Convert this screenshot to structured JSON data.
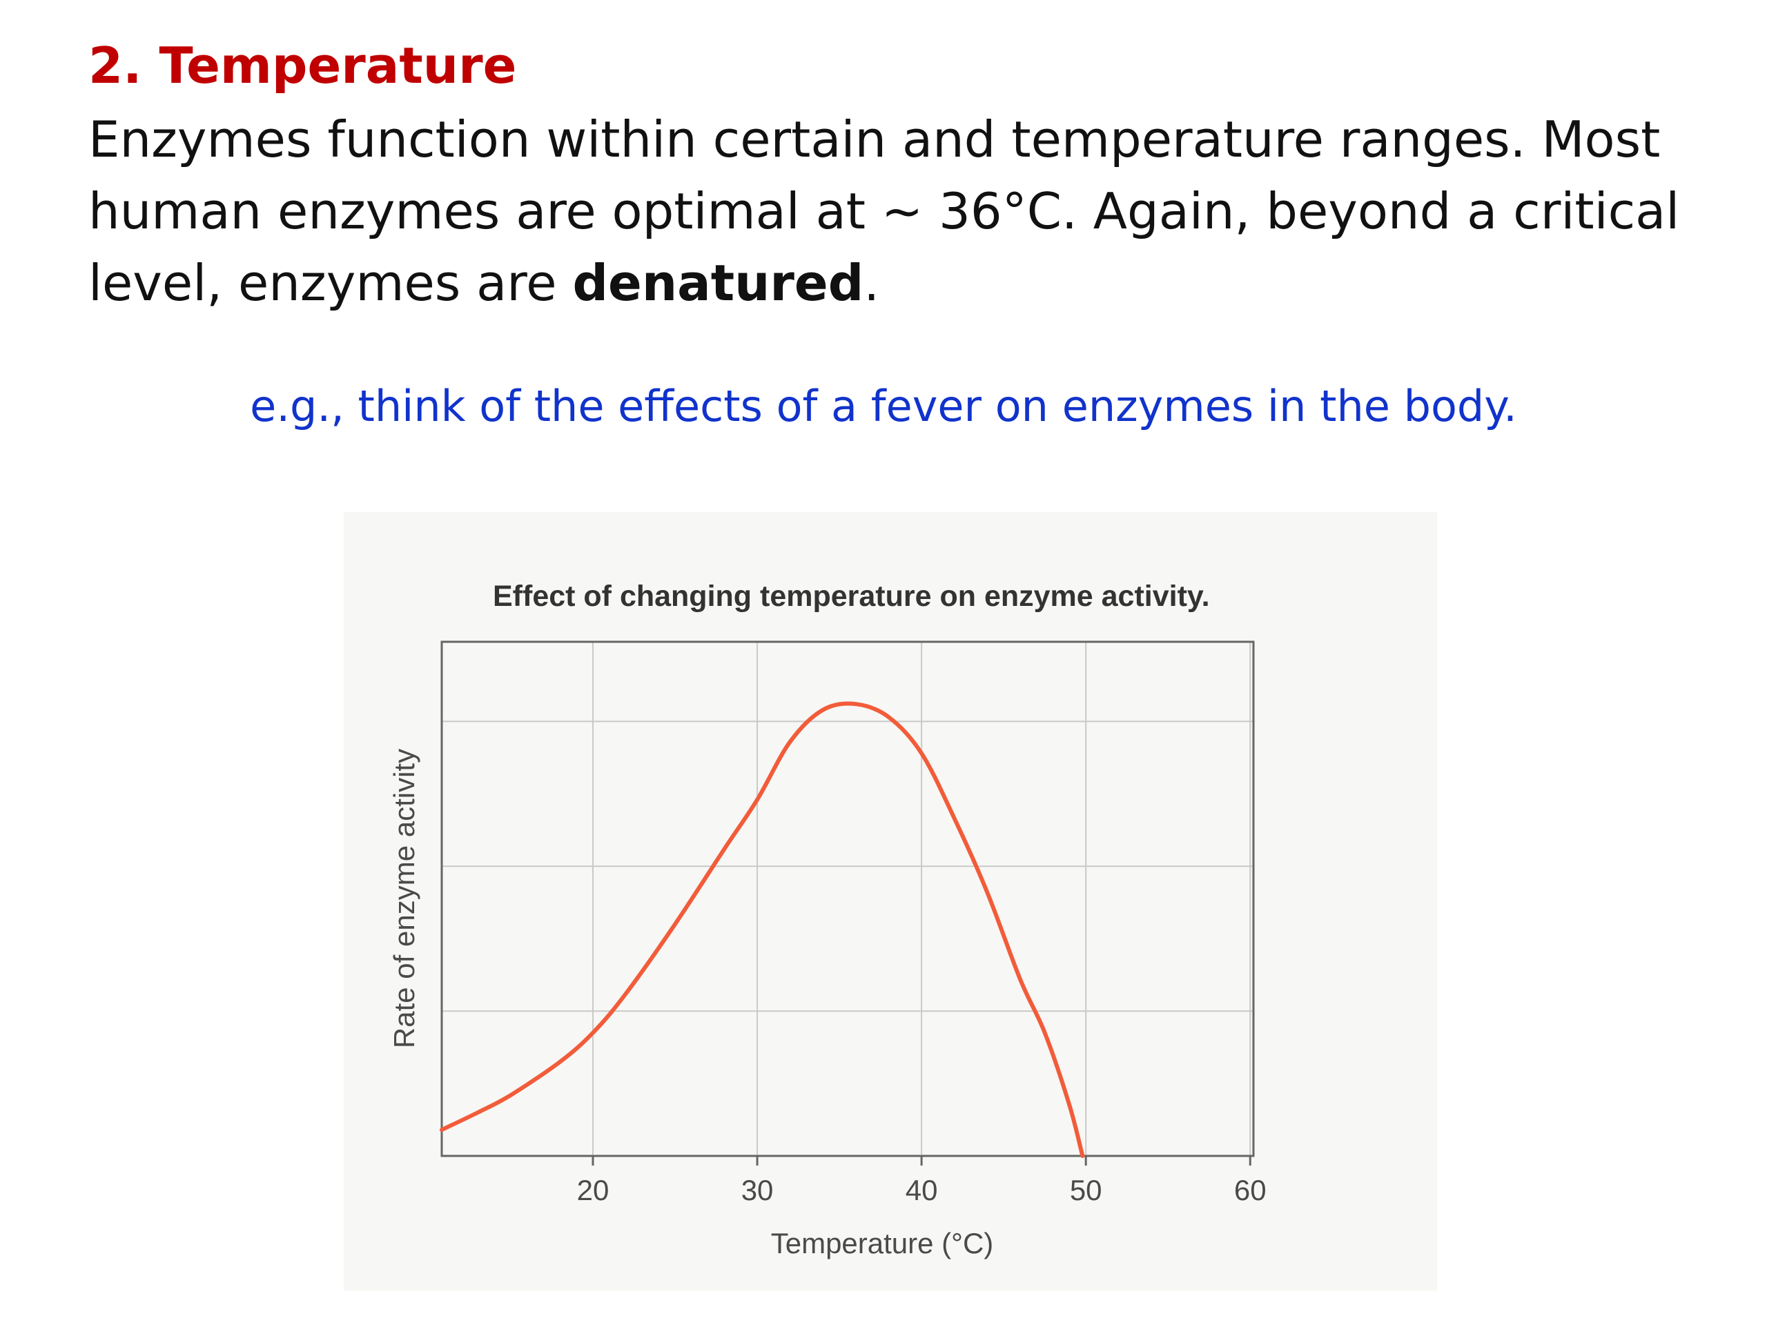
{
  "slide": {
    "heading": "2. Temperature",
    "body": {
      "line1": "Enzymes function within certain and temperature ranges. Most",
      "line2": "human enzymes are optimal at ~ 36°C. Again, beyond a critical",
      "line3_pre": "level, enzymes are ",
      "line3_bold": "denatured",
      "line3_post": "."
    },
    "example": "e.g., think of the effects of a fever on enzymes in the body."
  },
  "colors": {
    "heading": "#c00000",
    "example": "#1133cc",
    "curve": "#f25c3a"
  },
  "chart_data": {
    "type": "line",
    "title": "Effect of changing temperature on enzyme activity.",
    "xlabel": "Temperature (°C)",
    "ylabel": "Rate of enzyme activity",
    "xlim": [
      10.8,
      60.2
    ],
    "ylim": [
      0,
      3.55
    ],
    "x_ticks": [
      20,
      30,
      40,
      50,
      60
    ],
    "x_tick_labels": [
      "20",
      "30",
      "40",
      "50",
      "60"
    ],
    "y_gridlines": [
      1,
      2,
      3
    ],
    "y_tick_labels_shown": false,
    "grid": true,
    "legend": "none",
    "series": [
      {
        "x": [
          10.8,
          13,
          15,
          18,
          20,
          22,
          25,
          28,
          30,
          32,
          34,
          36,
          38,
          40,
          42,
          44,
          46,
          47.5,
          49,
          49.8
        ],
        "y": [
          0.18,
          0.3,
          0.42,
          0.65,
          0.85,
          1.12,
          1.6,
          2.12,
          2.46,
          2.86,
          3.08,
          3.12,
          3.03,
          2.78,
          2.33,
          1.82,
          1.22,
          0.85,
          0.35,
          0.0
        ]
      }
    ]
  }
}
